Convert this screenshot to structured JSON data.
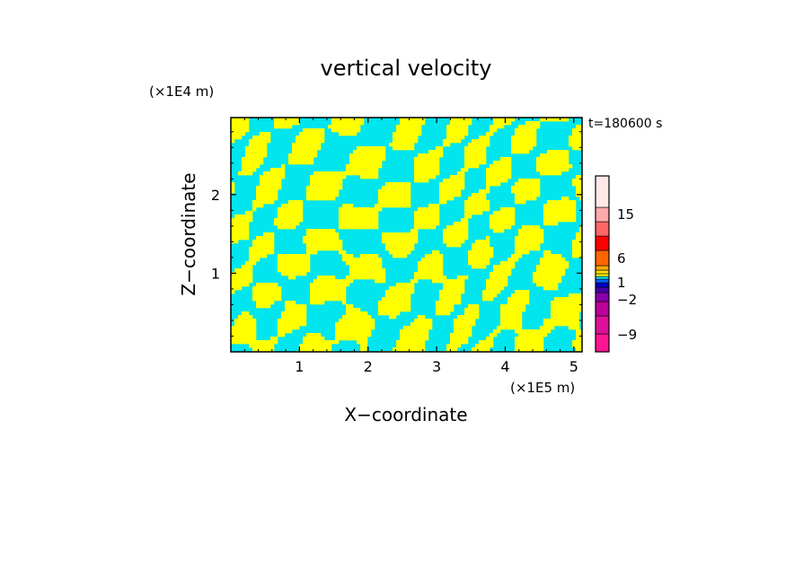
{
  "chart_data": {
    "type": "heatmap",
    "title": "vertical velocity",
    "xlabel": "X−coordinate",
    "ylabel": "Z−coordinate",
    "x_unit": "(×1E5 m)",
    "y_unit": "(×1E4 m)",
    "time_label": "t=180600 s",
    "xlim": [
      0,
      5.12
    ],
    "ylim": [
      0,
      2.98
    ],
    "x_ticks": [
      {
        "value": 1,
        "label": "1"
      },
      {
        "value": 2,
        "label": "2"
      },
      {
        "value": 3,
        "label": "3"
      },
      {
        "value": 4,
        "label": "4"
      },
      {
        "value": 5,
        "label": "5"
      }
    ],
    "y_ticks": [
      {
        "value": 1,
        "label": "1"
      },
      {
        "value": 2,
        "label": "2"
      }
    ],
    "colors": {
      "positive": "#ffff00",
      "negative": "#00e5ee"
    },
    "colorbar": {
      "levels": [
        {
          "color": "#ff1493"
        },
        {
          "color": "#dd1199"
        },
        {
          "color": "#bb0099"
        },
        {
          "color": "#8800aa"
        },
        {
          "color": "#4400aa"
        },
        {
          "color": "#0000cc"
        },
        {
          "color": "#0066ff"
        },
        {
          "color": "#00e5ee"
        },
        {
          "color": "#ffff00"
        },
        {
          "color": "#ffdd00"
        },
        {
          "color": "#ffaa00"
        },
        {
          "color": "#ff6600"
        },
        {
          "color": "#ff0000"
        },
        {
          "color": "#ff6666"
        },
        {
          "color": "#ffaaaa"
        },
        {
          "color": "#ffe8e8"
        }
      ],
      "tick_labels": [
        {
          "label": "15"
        },
        {
          "label": "6"
        },
        {
          "label": "1"
        },
        {
          "label": "−2"
        },
        {
          "label": "−9"
        }
      ]
    }
  }
}
